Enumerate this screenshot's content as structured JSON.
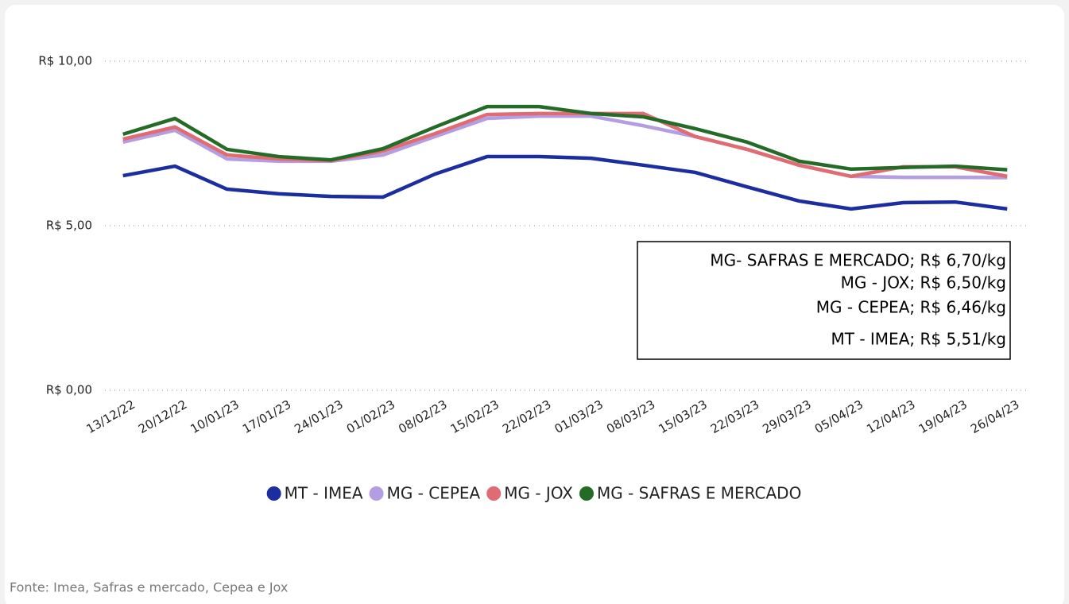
{
  "chart_data": {
    "type": "line",
    "categories": [
      "13/12/22",
      "20/12/22",
      "10/01/23",
      "17/01/23",
      "24/01/23",
      "01/02/23",
      "08/02/23",
      "15/02/23",
      "22/02/23",
      "01/03/23",
      "08/03/23",
      "15/03/23",
      "22/03/23",
      "29/03/23",
      "05/04/23",
      "12/04/23",
      "19/04/23",
      "26/04/23"
    ],
    "series": [
      {
        "name": "MT - IMEA",
        "color": "#1c2da0",
        "values": [
          6.52,
          6.81,
          6.11,
          5.97,
          5.89,
          5.87,
          6.57,
          7.1,
          7.1,
          7.05,
          6.84,
          6.62,
          6.18,
          5.75,
          5.51,
          5.7,
          5.72,
          5.51
        ]
      },
      {
        "name": "MG - CEPEA",
        "color": "#b39ee2",
        "values": [
          7.54,
          7.9,
          7.03,
          6.96,
          6.96,
          7.15,
          7.71,
          8.26,
          8.33,
          8.33,
          8.04,
          7.71,
          7.32,
          6.84,
          6.5,
          6.47,
          6.47,
          6.46
        ]
      },
      {
        "name": "MG - JOX",
        "color": "#e06b73",
        "values": [
          7.63,
          8.0,
          7.15,
          7.03,
          6.98,
          7.27,
          7.8,
          8.38,
          8.41,
          8.41,
          8.41,
          7.71,
          7.32,
          6.84,
          6.5,
          6.79,
          6.79,
          6.5
        ]
      },
      {
        "name": "MG - SAFRAS E MERCADO",
        "color": "#236b26",
        "values": [
          7.78,
          8.26,
          7.32,
          7.1,
          7.0,
          7.34,
          8.0,
          8.62,
          8.62,
          8.41,
          8.31,
          7.95,
          7.54,
          6.96,
          6.72,
          6.77,
          6.81,
          6.7
        ]
      }
    ],
    "ylim": [
      0,
      10
    ],
    "yticks": [
      {
        "value": 0,
        "label": "R$ 0,00"
      },
      {
        "value": 5,
        "label": "R$ 5,00"
      },
      {
        "value": 10,
        "label": "R$ 10,00"
      }
    ],
    "grid": true,
    "legend": "bottom",
    "annotations": [
      "MG- SAFRAS E MERCADO; R$ 6,70/kg",
      "MG - JOX; R$ 6,50/kg",
      "MG - CEPEA; R$ 6,46/kg",
      "MT - IMEA; R$ 5,51/kg"
    ],
    "source": "Fonte: Imea, Safras e mercado, Cepea e Jox"
  }
}
